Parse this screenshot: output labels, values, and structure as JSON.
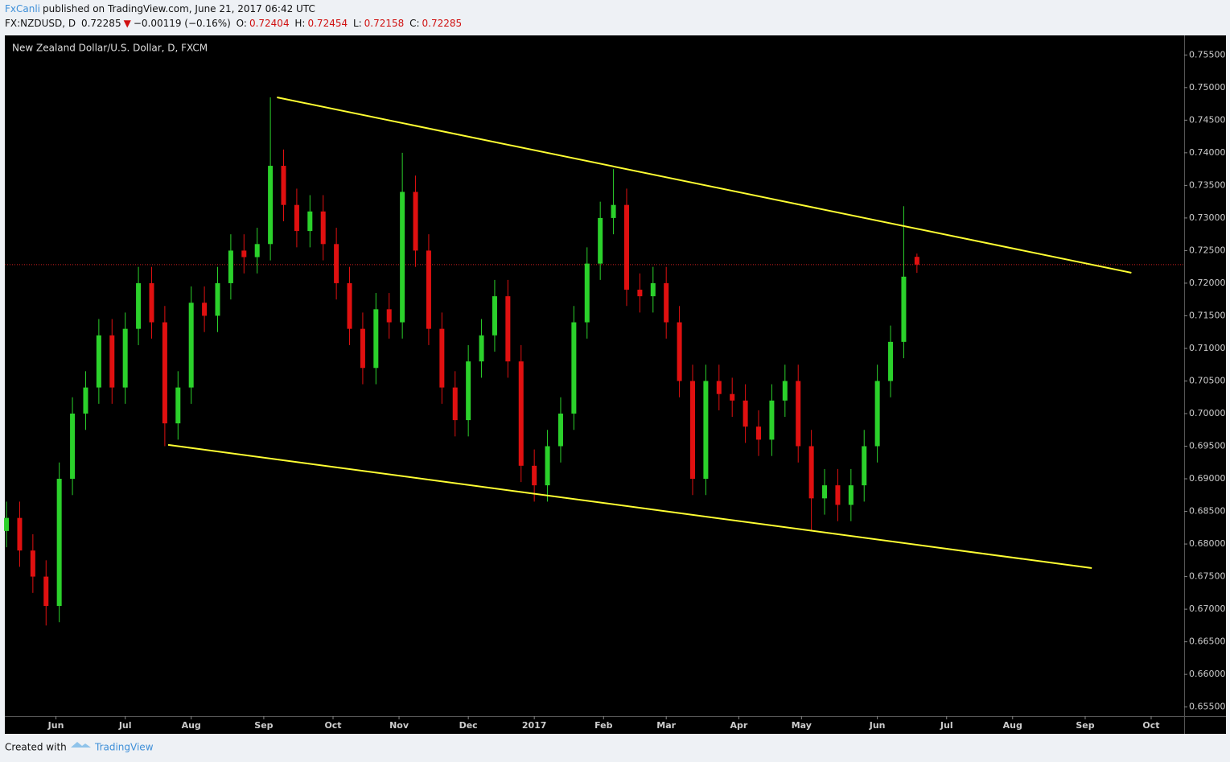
{
  "header": {
    "author": "FxCanli",
    "published": "published on TradingView.com, June 21, 2017 06:42 UTC",
    "symbol": "FX:NZDUSD, D",
    "last": "0.72285",
    "arrow": "▼",
    "change": "−0.00119 (−0.16%)",
    "ohlc": [
      {
        "label": "O:",
        "value": "0.72404"
      },
      {
        "label": "H:",
        "value": "0.72454"
      },
      {
        "label": "L:",
        "value": "0.72158"
      },
      {
        "label": "C:",
        "value": "0.72285"
      }
    ]
  },
  "footer": {
    "created": "Created with",
    "brand": "TradingView"
  },
  "chart_data": {
    "type": "candlestick",
    "title": "New Zealand Dollar/U.S. Dollar, D, FXCM",
    "x": [
      0,
      4,
      8,
      12,
      16,
      20,
      24,
      28,
      32,
      36,
      40,
      44,
      48,
      52,
      56,
      60,
      64,
      68,
      72,
      76,
      80,
      84,
      88,
      92,
      96,
      100,
      104,
      108,
      112,
      116,
      120,
      124,
      128,
      132,
      136,
      140,
      144,
      148,
      152,
      156,
      160,
      164,
      168,
      172,
      176,
      180,
      184,
      188,
      192,
      196,
      200,
      204,
      208,
      212,
      216,
      220,
      224,
      228,
      232,
      236,
      240,
      244,
      248,
      252,
      256,
      260,
      264,
      268,
      272,
      276
    ],
    "open": [
      0.682,
      0.684,
      0.679,
      0.675,
      0.6705,
      0.69,
      0.7,
      0.704,
      0.712,
      0.704,
      0.713,
      0.72,
      0.714,
      0.6985,
      0.704,
      0.717,
      0.715,
      0.72,
      0.725,
      0.724,
      0.726,
      0.738,
      0.732,
      0.728,
      0.731,
      0.726,
      0.72,
      0.713,
      0.707,
      0.716,
      0.714,
      0.734,
      0.725,
      0.713,
      0.704,
      0.699,
      0.708,
      0.712,
      0.718,
      0.708,
      0.692,
      0.689,
      0.695,
      0.7,
      0.714,
      0.723,
      0.73,
      0.732,
      0.719,
      0.718,
      0.72,
      0.714,
      0.705,
      0.69,
      0.705,
      0.703,
      0.702,
      0.698,
      0.696,
      0.702,
      0.705,
      0.695,
      0.687,
      0.689,
      0.686,
      0.689,
      0.695,
      0.705,
      0.711,
      0.72404
    ],
    "high": [
      0.6865,
      0.6865,
      0.6815,
      0.6775,
      0.6925,
      0.7025,
      0.7065,
      0.7145,
      0.7145,
      0.7155,
      0.7225,
      0.7225,
      0.7165,
      0.7065,
      0.7195,
      0.7195,
      0.7225,
      0.7275,
      0.7275,
      0.7285,
      0.7485,
      0.7405,
      0.7345,
      0.7335,
      0.7335,
      0.7285,
      0.7225,
      0.7155,
      0.7185,
      0.7185,
      0.74,
      0.7365,
      0.7275,
      0.7155,
      0.7065,
      0.7105,
      0.7145,
      0.7205,
      0.7205,
      0.7105,
      0.6945,
      0.6975,
      0.7025,
      0.7165,
      0.7255,
      0.7325,
      0.7375,
      0.7345,
      0.7215,
      0.7225,
      0.7225,
      0.7165,
      0.7075,
      0.7075,
      0.7075,
      0.7055,
      0.7045,
      0.7005,
      0.7045,
      0.7075,
      0.7075,
      0.6975,
      0.6915,
      0.6915,
      0.6915,
      0.6975,
      0.7075,
      0.7135,
      0.7318,
      0.72454
    ],
    "low": [
      0.6795,
      0.6765,
      0.6725,
      0.6675,
      0.668,
      0.6875,
      0.6975,
      0.7015,
      0.7015,
      0.7015,
      0.7105,
      0.7115,
      0.695,
      0.696,
      0.7015,
      0.7125,
      0.7125,
      0.7175,
      0.7215,
      0.7215,
      0.7235,
      0.7295,
      0.7255,
      0.7255,
      0.7235,
      0.7175,
      0.7105,
      0.7045,
      0.7045,
      0.7115,
      0.7115,
      0.7225,
      0.7105,
      0.7015,
      0.6965,
      0.6965,
      0.7055,
      0.7095,
      0.7055,
      0.6895,
      0.6865,
      0.6865,
      0.6925,
      0.6975,
      0.7115,
      0.7205,
      0.7275,
      0.7165,
      0.7155,
      0.7155,
      0.7115,
      0.7025,
      0.6875,
      0.6875,
      0.7005,
      0.6995,
      0.6955,
      0.6935,
      0.6935,
      0.6995,
      0.6925,
      0.682,
      0.6845,
      0.6835,
      0.6835,
      0.6865,
      0.6925,
      0.7025,
      0.7085,
      0.72158
    ],
    "close": [
      0.684,
      0.679,
      0.675,
      0.6705,
      0.69,
      0.7,
      0.704,
      0.712,
      0.704,
      0.713,
      0.72,
      0.714,
      0.6985,
      0.704,
      0.717,
      0.715,
      0.72,
      0.725,
      0.724,
      0.726,
      0.738,
      0.732,
      0.728,
      0.731,
      0.726,
      0.72,
      0.713,
      0.707,
      0.716,
      0.714,
      0.734,
      0.725,
      0.713,
      0.704,
      0.699,
      0.708,
      0.712,
      0.718,
      0.708,
      0.692,
      0.689,
      0.695,
      0.7,
      0.714,
      0.723,
      0.73,
      0.732,
      0.719,
      0.718,
      0.72,
      0.714,
      0.705,
      0.69,
      0.705,
      0.703,
      0.702,
      0.698,
      0.696,
      0.702,
      0.705,
      0.695,
      0.687,
      0.689,
      0.686,
      0.689,
      0.695,
      0.705,
      0.711,
      0.721,
      0.72285
    ],
    "up_color": "#2bd12b",
    "down_color": "#e01010",
    "trendlines": [
      {
        "x": [
          82,
          341
        ],
        "y": [
          0.7485,
          0.7216
        ],
        "color": "#ffff33"
      },
      {
        "x": [
          49,
          329
        ],
        "y": [
          0.6952,
          0.6763
        ],
        "color": "#ffff33"
      }
    ],
    "price_line_color": "#d02020",
    "xlim": [
      -0.5,
      357
    ],
    "xticks": [
      {
        "value": 15,
        "label": "Jun"
      },
      {
        "value": 36,
        "label": "Jul"
      },
      {
        "value": 56,
        "label": "Aug"
      },
      {
        "value": 78,
        "label": "Sep"
      },
      {
        "value": 99,
        "label": "Oct"
      },
      {
        "value": 119,
        "label": "Nov"
      },
      {
        "value": 140,
        "label": "Dec"
      },
      {
        "value": 160,
        "label": "2017"
      },
      {
        "value": 181,
        "label": "Feb"
      },
      {
        "value": 200,
        "label": "Mar"
      },
      {
        "value": 222,
        "label": "Apr"
      },
      {
        "value": 241,
        "label": "May"
      },
      {
        "value": 264,
        "label": "Jun"
      },
      {
        "value": 285,
        "label": "Jul"
      },
      {
        "value": 305,
        "label": "Aug"
      },
      {
        "value": 327,
        "label": "Sep"
      },
      {
        "value": 347,
        "label": "Oct"
      }
    ],
    "ylim": [
      0.6536,
      0.758
    ],
    "yticks": [
      {
        "value": 0.655,
        "label": "0.65500"
      },
      {
        "value": 0.66,
        "label": "0.66000"
      },
      {
        "value": 0.665,
        "label": "0.66500"
      },
      {
        "value": 0.67,
        "label": "0.67000"
      },
      {
        "value": 0.675,
        "label": "0.67500"
      },
      {
        "value": 0.68,
        "label": "0.68000"
      },
      {
        "value": 0.685,
        "label": "0.68500"
      },
      {
        "value": 0.69,
        "label": "0.69000"
      },
      {
        "value": 0.695,
        "label": "0.69500"
      },
      {
        "value": 0.7,
        "label": "0.70000"
      },
      {
        "value": 0.705,
        "label": "0.70500"
      },
      {
        "value": 0.71,
        "label": "0.71000"
      },
      {
        "value": 0.715,
        "label": "0.71500"
      },
      {
        "value": 0.72,
        "label": "0.72000"
      },
      {
        "value": 0.725,
        "label": "0.72500"
      },
      {
        "value": 0.73,
        "label": "0.73000"
      },
      {
        "value": 0.735,
        "label": "0.73500"
      },
      {
        "value": 0.74,
        "label": "0.74000"
      },
      {
        "value": 0.745,
        "label": "0.74500"
      },
      {
        "value": 0.75,
        "label": "0.75000"
      },
      {
        "value": 0.755,
        "label": "0.75500"
      }
    ]
  }
}
